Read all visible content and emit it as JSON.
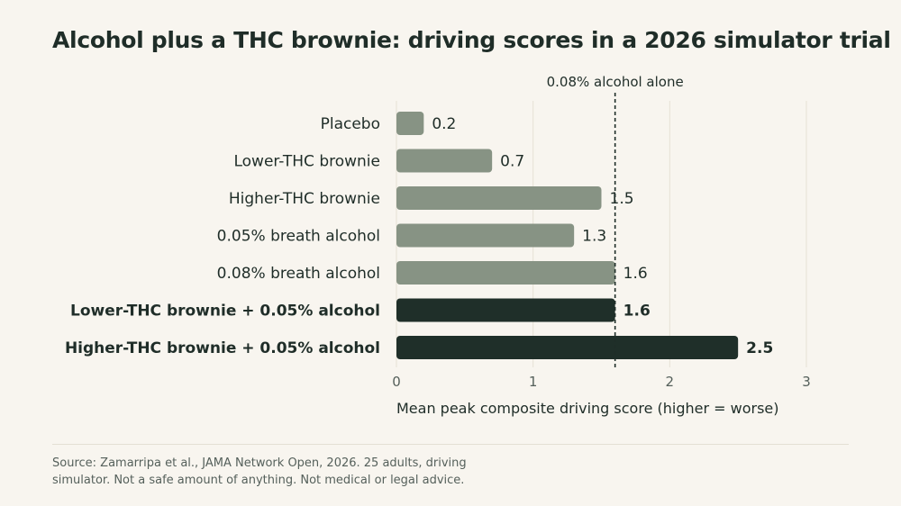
{
  "title": "Alcohol plus a THC brownie: driving scores in a 2026 simulator trial",
  "source": "Source: Zamarripa et al., JAMA Network Open, 2026. 25 adults, driving simulator. Not a safe amount of anything. Not medical or legal advice.",
  "colors": {
    "background": "#f8f5ef",
    "bar_single": "#879384",
    "bar_combo": "#1f2f29",
    "text": "#1f2d28",
    "grid": "#e6e1d6"
  },
  "chart_data": {
    "type": "bar",
    "orientation": "horizontal",
    "categories": [
      "Placebo",
      "Lower-THC brownie",
      "Higher-THC brownie",
      "0.05% breath alcohol",
      "0.08% breath alcohol",
      "Lower-THC brownie + 0.05% alcohol",
      "Higher-THC brownie + 0.05% alcohol"
    ],
    "values": [
      0.2,
      0.7,
      1.5,
      1.3,
      1.6,
      1.6,
      2.5
    ],
    "value_labels": [
      "0.2",
      "0.7",
      "1.5",
      "1.3",
      "1.6",
      "1.6",
      "2.5"
    ],
    "highlighted": [
      false,
      false,
      false,
      false,
      false,
      true,
      true
    ],
    "xlabel": "Mean peak composite driving score (higher = worse)",
    "xlim": [
      0,
      3
    ],
    "xticks": [
      0,
      1,
      2,
      3
    ],
    "grid": true,
    "reference_line": {
      "value": 1.6,
      "label": "0.08% alcohol alone",
      "style": "dashed"
    }
  }
}
